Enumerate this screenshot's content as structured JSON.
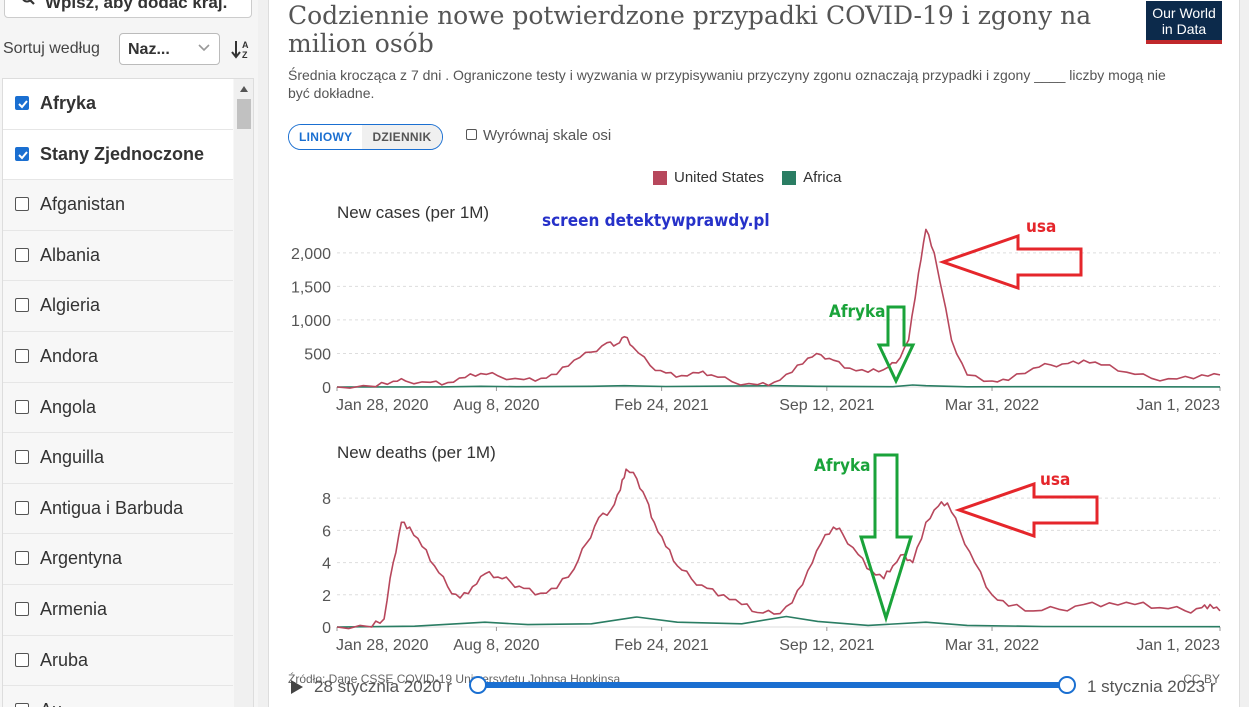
{
  "sidebar": {
    "search_placeholder": "Wpisz, aby dodać kraj.",
    "sort_label": "Sortuj według",
    "sort_value": "Naz...",
    "countries": [
      {
        "name": "Afryka",
        "checked": true
      },
      {
        "name": "Stany Zjednoczone",
        "checked": true
      },
      {
        "name": "Afganistan",
        "checked": false
      },
      {
        "name": "Albania",
        "checked": false
      },
      {
        "name": "Algieria",
        "checked": false
      },
      {
        "name": "Andora",
        "checked": false
      },
      {
        "name": "Angola",
        "checked": false
      },
      {
        "name": "Anguilla",
        "checked": false
      },
      {
        "name": "Antigua i Barbuda",
        "checked": false
      },
      {
        "name": "Argentyna",
        "checked": false
      },
      {
        "name": "Armenia",
        "checked": false
      },
      {
        "name": "Aruba",
        "checked": false
      },
      {
        "name": "Au...",
        "checked": false
      }
    ]
  },
  "header": {
    "title": "Codziennie nowe potwierdzone przypadki COVID-19 i zgony na milion osób",
    "subtitle": "Średnia krocząca z 7 dni . Ograniczone testy i wyzwania w przypisywaniu przyczyny zgonu oznaczają przypadki i zgony ____ liczby mogą nie być dokładne.",
    "logo_line1": "Our World",
    "logo_line2": "in Data"
  },
  "controls": {
    "linear_label": "LINIOWY",
    "log_label": "DZIENNIK",
    "align_label": "Wyrównaj skale osi"
  },
  "colors": {
    "us": "#b7475c",
    "africa": "#2a7d63",
    "accent": "#1a6fd1",
    "annot_red": "#e5262b",
    "annot_green": "#1aa33a",
    "watermark": "#2631c9"
  },
  "watermark": "screen detektywprawdy.pl",
  "annotations": {
    "usa": "usa",
    "afryka": "Afryka"
  },
  "footer": {
    "source": "Źródło: Dane CSSE COVID-19 Uniwersytetu Johnsa Hopkinsa",
    "license": "CC BY",
    "start": "28 stycznia 2020 r",
    "end": "1 stycznia 2023 r"
  },
  "chart_data": [
    {
      "type": "line",
      "title": "New cases (per 1M)",
      "x_ticks": [
        "Jan 28, 2020",
        "Aug 8, 2020",
        "Feb 24, 2021",
        "Sep 12, 2021",
        "Mar 31, 2022",
        "Jan 1, 2023"
      ],
      "y_ticks": [
        0,
        500,
        1000,
        1500,
        2000
      ],
      "ylim": [
        0,
        2400
      ],
      "xlim": [
        "2020-01-28",
        "2023-01-01"
      ],
      "legend": "top-center",
      "grid": true,
      "series": [
        {
          "name": "United States",
          "points": [
            [
              "2020-01-28",
              0
            ],
            [
              "2020-03-15",
              5
            ],
            [
              "2020-04-05",
              85
            ],
            [
              "2020-04-20",
              90
            ],
            [
              "2020-05-20",
              70
            ],
            [
              "2020-06-10",
              65
            ],
            [
              "2020-07-01",
              140
            ],
            [
              "2020-07-20",
              200
            ],
            [
              "2020-08-10",
              165
            ],
            [
              "2020-09-10",
              110
            ],
            [
              "2020-10-01",
              130
            ],
            [
              "2020-10-20",
              190
            ],
            [
              "2020-11-10",
              400
            ],
            [
              "2020-12-01",
              520
            ],
            [
              "2020-12-20",
              660
            ],
            [
              "2021-01-01",
              640
            ],
            [
              "2021-01-10",
              750
            ],
            [
              "2021-01-20",
              600
            ],
            [
              "2021-02-10",
              320
            ],
            [
              "2021-03-01",
              210
            ],
            [
              "2021-03-20",
              170
            ],
            [
              "2021-04-10",
              210
            ],
            [
              "2021-04-25",
              180
            ],
            [
              "2021-05-20",
              80
            ],
            [
              "2021-06-20",
              35
            ],
            [
              "2021-07-10",
              70
            ],
            [
              "2021-08-01",
              220
            ],
            [
              "2021-08-20",
              430
            ],
            [
              "2021-09-05",
              480
            ],
            [
              "2021-09-20",
              400
            ],
            [
              "2021-10-10",
              280
            ],
            [
              "2021-11-01",
              220
            ],
            [
              "2021-11-20",
              260
            ],
            [
              "2021-12-05",
              360
            ],
            [
              "2021-12-20",
              700
            ],
            [
              "2022-01-01",
              1700
            ],
            [
              "2022-01-10",
              2350
            ],
            [
              "2022-01-20",
              2000
            ],
            [
              "2022-02-10",
              700
            ],
            [
              "2022-03-01",
              180
            ],
            [
              "2022-03-31",
              90
            ],
            [
              "2022-04-20",
              100
            ],
            [
              "2022-05-20",
              280
            ],
            [
              "2022-06-10",
              330
            ],
            [
              "2022-07-01",
              350
            ],
            [
              "2022-07-20",
              400
            ],
            [
              "2022-08-10",
              330
            ],
            [
              "2022-09-10",
              220
            ],
            [
              "2022-10-10",
              130
            ],
            [
              "2022-11-10",
              120
            ],
            [
              "2022-12-10",
              180
            ],
            [
              "2023-01-01",
              180
            ]
          ]
        },
        {
          "name": "Africa",
          "points": [
            [
              "2020-01-28",
              0
            ],
            [
              "2020-06-01",
              2
            ],
            [
              "2020-07-20",
              10
            ],
            [
              "2020-09-01",
              5
            ],
            [
              "2020-12-01",
              10
            ],
            [
              "2021-01-10",
              20
            ],
            [
              "2021-03-01",
              8
            ],
            [
              "2021-07-10",
              20
            ],
            [
              "2021-09-01",
              10
            ],
            [
              "2021-12-01",
              5
            ],
            [
              "2021-12-25",
              30
            ],
            [
              "2022-01-10",
              20
            ],
            [
              "2022-03-01",
              3
            ],
            [
              "2022-06-01",
              4
            ],
            [
              "2023-01-01",
              1
            ]
          ]
        }
      ]
    },
    {
      "type": "line",
      "title": "New deaths (per 1M)",
      "x_ticks": [
        "Jan 28, 2020",
        "Aug 8, 2020",
        "Feb 24, 2021",
        "Sep 12, 2021",
        "Mar 31, 2022",
        "Jan 1, 2023"
      ],
      "y_ticks": [
        0,
        2,
        4,
        6,
        8
      ],
      "ylim": [
        0,
        9.5
      ],
      "xlim": [
        "2020-01-28",
        "2023-01-01"
      ],
      "grid": true,
      "series": [
        {
          "name": "United States",
          "points": [
            [
              "2020-01-28",
              0
            ],
            [
              "2020-03-10",
              0
            ],
            [
              "2020-03-25",
              0.5
            ],
            [
              "2020-04-05",
              4
            ],
            [
              "2020-04-15",
              6.5
            ],
            [
              "2020-04-25",
              6.2
            ],
            [
              "2020-05-10",
              5
            ],
            [
              "2020-05-25",
              3.8
            ],
            [
              "2020-06-10",
              2.5
            ],
            [
              "2020-06-25",
              1.8
            ],
            [
              "2020-07-10",
              2.5
            ],
            [
              "2020-07-25",
              3.3
            ],
            [
              "2020-08-10",
              3.1
            ],
            [
              "2020-08-25",
              2.8
            ],
            [
              "2020-09-10",
              2.4
            ],
            [
              "2020-10-01",
              2.1
            ],
            [
              "2020-10-20",
              2.4
            ],
            [
              "2020-11-10",
              3.6
            ],
            [
              "2020-11-25",
              5.2
            ],
            [
              "2020-12-10",
              6.8
            ],
            [
              "2020-12-25",
              7.3
            ],
            [
              "2021-01-05",
              8.5
            ],
            [
              "2021-01-12",
              9.8
            ],
            [
              "2021-01-25",
              9.2
            ],
            [
              "2021-02-05",
              8.0
            ],
            [
              "2021-02-15",
              6.5
            ],
            [
              "2021-03-01",
              5.0
            ],
            [
              "2021-03-15",
              3.8
            ],
            [
              "2021-04-01",
              3.0
            ],
            [
              "2021-04-20",
              2.4
            ],
            [
              "2021-05-10",
              2.0
            ],
            [
              "2021-06-01",
              1.4
            ],
            [
              "2021-06-20",
              0.9
            ],
            [
              "2021-07-10",
              0.8
            ],
            [
              "2021-08-01",
              1.5
            ],
            [
              "2021-08-20",
              3.5
            ],
            [
              "2021-09-05",
              5.2
            ],
            [
              "2021-09-20",
              6.2
            ],
            [
              "2021-10-01",
              5.8
            ],
            [
              "2021-10-20",
              4.5
            ],
            [
              "2021-11-05",
              3.5
            ],
            [
              "2021-11-20",
              3.0
            ],
            [
              "2021-12-01",
              3.8
            ],
            [
              "2021-12-15",
              4.5
            ],
            [
              "2021-12-25",
              4.0
            ],
            [
              "2022-01-10",
              6.5
            ],
            [
              "2022-01-25",
              7.5
            ],
            [
              "2022-02-05",
              7.7
            ],
            [
              "2022-02-20",
              6.0
            ],
            [
              "2022-03-10",
              4.0
            ],
            [
              "2022-03-31",
              2.0
            ],
            [
              "2022-04-20",
              1.3
            ],
            [
              "2022-05-20",
              1.0
            ],
            [
              "2022-06-20",
              1.1
            ],
            [
              "2022-07-20",
              1.4
            ],
            [
              "2022-08-20",
              1.5
            ],
            [
              "2022-09-20",
              1.4
            ],
            [
              "2022-10-20",
              1.2
            ],
            [
              "2022-11-20",
              1.0
            ],
            [
              "2022-12-10",
              1.2
            ],
            [
              "2022-12-20",
              1.4
            ],
            [
              "2023-01-01",
              1.0
            ]
          ]
        },
        {
          "name": "Africa",
          "points": [
            [
              "2020-01-28",
              0
            ],
            [
              "2020-05-01",
              0.05
            ],
            [
              "2020-07-25",
              0.3
            ],
            [
              "2020-09-15",
              0.15
            ],
            [
              "2020-12-01",
              0.2
            ],
            [
              "2021-01-25",
              0.62
            ],
            [
              "2021-03-15",
              0.3
            ],
            [
              "2021-06-01",
              0.2
            ],
            [
              "2021-07-25",
              0.65
            ],
            [
              "2021-09-01",
              0.35
            ],
            [
              "2021-11-01",
              0.1
            ],
            [
              "2022-01-10",
              0.3
            ],
            [
              "2022-03-01",
              0.1
            ],
            [
              "2022-06-01",
              0.03
            ],
            [
              "2023-01-01",
              0.02
            ]
          ]
        }
      ]
    }
  ]
}
